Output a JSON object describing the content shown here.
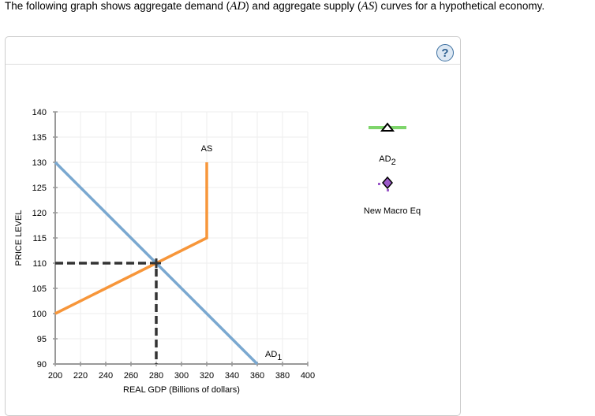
{
  "prompt": {
    "before": "The following graph shows aggregate demand (",
    "ad": "AD",
    "middle": ") and aggregate supply (",
    "as": "AS",
    "after": ") curves for a hypothetical economy."
  },
  "panel": {
    "help_icon": "?"
  },
  "legend": {
    "ad2_label": "AD",
    "ad2_sub": "2",
    "ad2_color": "#7ed56b",
    "eq_label": "New Macro Eq",
    "eq_color": "#9b59c9"
  },
  "chart_data": {
    "type": "line",
    "title": "",
    "xlabel": "REAL GDP (Billions of dollars)",
    "ylabel": "PRICE LEVEL",
    "xlim": [
      200,
      400
    ],
    "ylim": [
      90,
      140
    ],
    "xticks": [
      200,
      220,
      240,
      260,
      280,
      300,
      320,
      340,
      360,
      380,
      400
    ],
    "yticks": [
      90,
      95,
      100,
      105,
      110,
      115,
      120,
      125,
      130,
      135,
      140
    ],
    "grid": true,
    "series": [
      {
        "name": "AD1",
        "label": "AD",
        "label_sub": "1",
        "color": "#7aa8d0",
        "points": [
          [
            200,
            130
          ],
          [
            360,
            90
          ]
        ]
      },
      {
        "name": "AS",
        "label": "AS",
        "color": "#f7963a",
        "points": [
          [
            200,
            100
          ],
          [
            320,
            115
          ],
          [
            320,
            130
          ]
        ]
      }
    ],
    "equilibrium": {
      "x": 280,
      "y": 110,
      "style": "dashed",
      "color": "#333333"
    },
    "legend_items": [
      "AD2",
      "New Macro Eq"
    ]
  }
}
